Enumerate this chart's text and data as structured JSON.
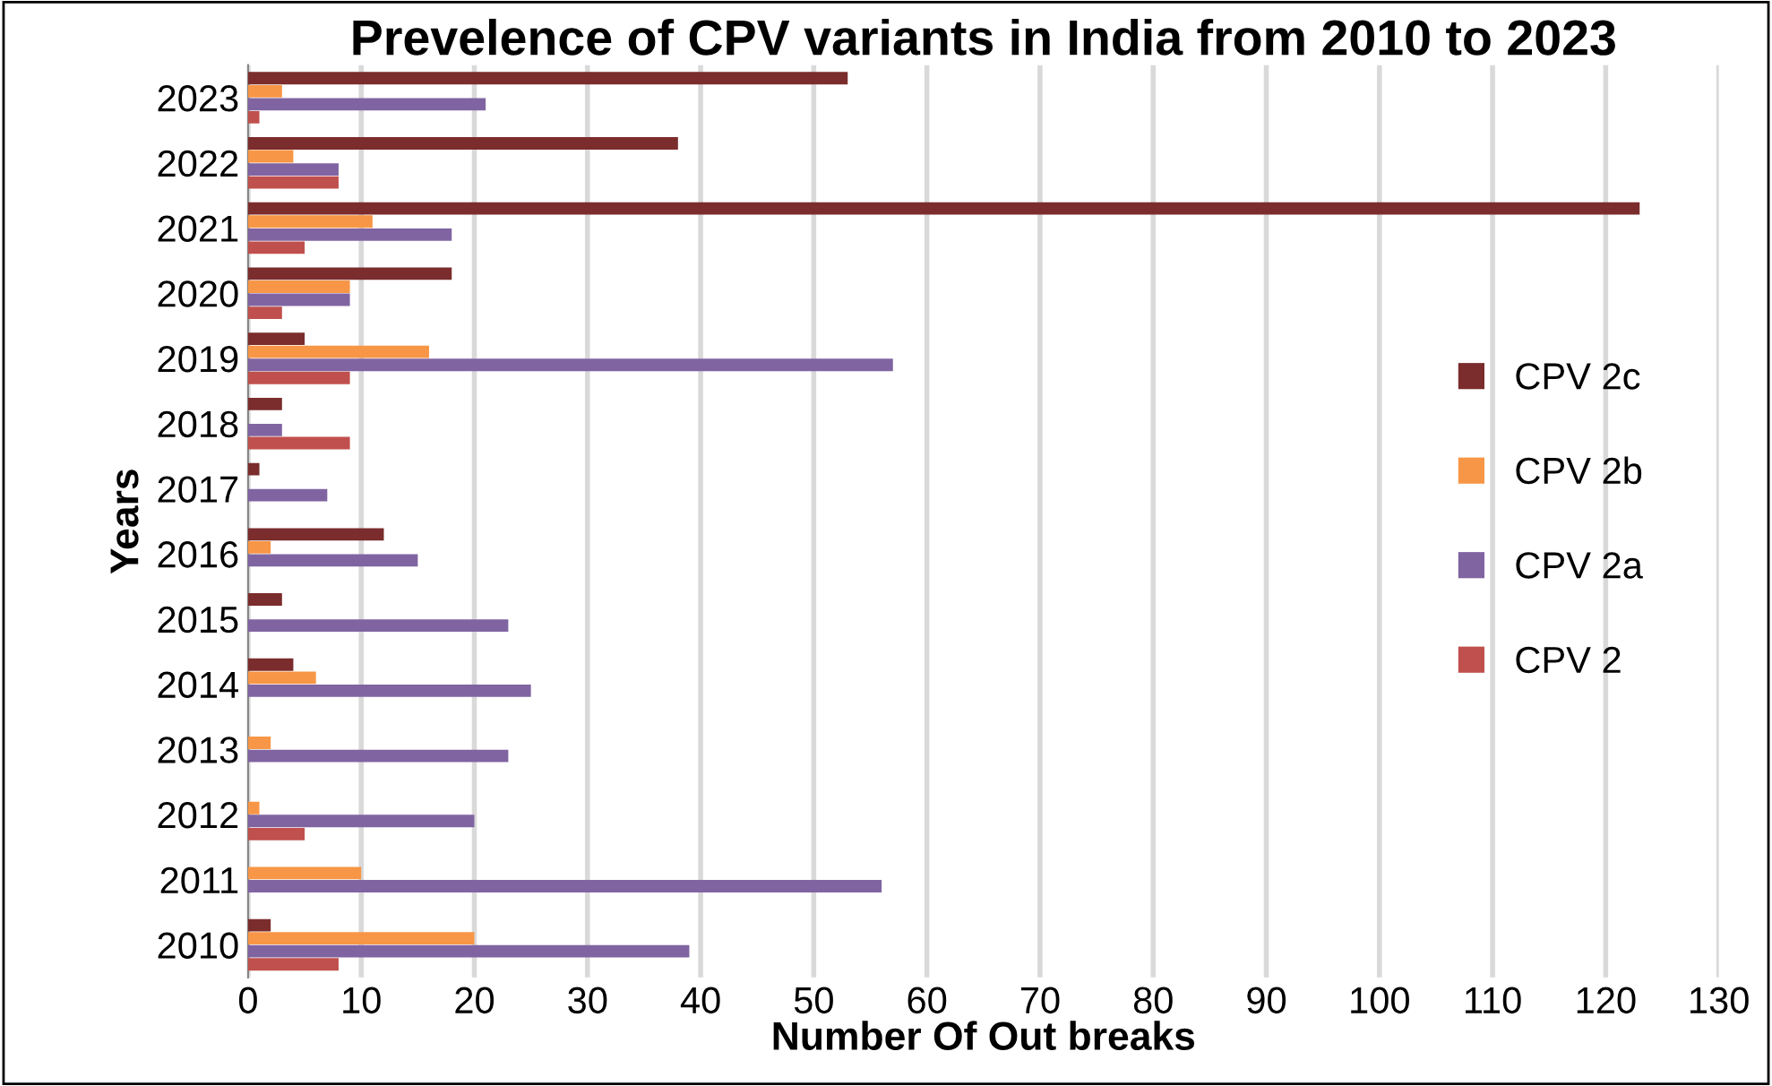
{
  "chart_data": {
    "type": "bar",
    "orientation": "horizontal",
    "title": "Prevelence of CPV variants in India from 2010 to 2023",
    "xlabel": "Number Of Out breaks",
    "ylabel": "Years",
    "categories": [
      "2023",
      "2022",
      "2021",
      "2020",
      "2019",
      "2018",
      "2017",
      "2016",
      "2015",
      "2014",
      "2013",
      "2012",
      "2011",
      "2010"
    ],
    "series": [
      {
        "name": "CPV 2c",
        "color": "#7b2c2c",
        "values": [
          53,
          38,
          123,
          18,
          5,
          3,
          1,
          12,
          3,
          4,
          null,
          null,
          null,
          2
        ]
      },
      {
        "name": "CPV 2b",
        "color": "#f79646",
        "values": [
          3,
          4,
          11,
          9,
          16,
          null,
          null,
          2,
          null,
          6,
          2,
          1,
          10,
          20
        ]
      },
      {
        "name": "CPV 2a",
        "color": "#8064a2",
        "values": [
          21,
          8,
          18,
          9,
          57,
          3,
          7,
          15,
          23,
          25,
          23,
          20,
          56,
          39
        ]
      },
      {
        "name": "CPV 2",
        "color": "#c0504d",
        "values": [
          1,
          8,
          5,
          3,
          9,
          9,
          null,
          null,
          null,
          null,
          null,
          5,
          null,
          8
        ]
      }
    ],
    "xlim": [
      0,
      130
    ],
    "xticks": [
      0,
      10,
      20,
      30,
      40,
      50,
      60,
      70,
      80,
      90,
      100,
      110,
      120,
      130
    ],
    "grid": "x",
    "legend": "right"
  }
}
